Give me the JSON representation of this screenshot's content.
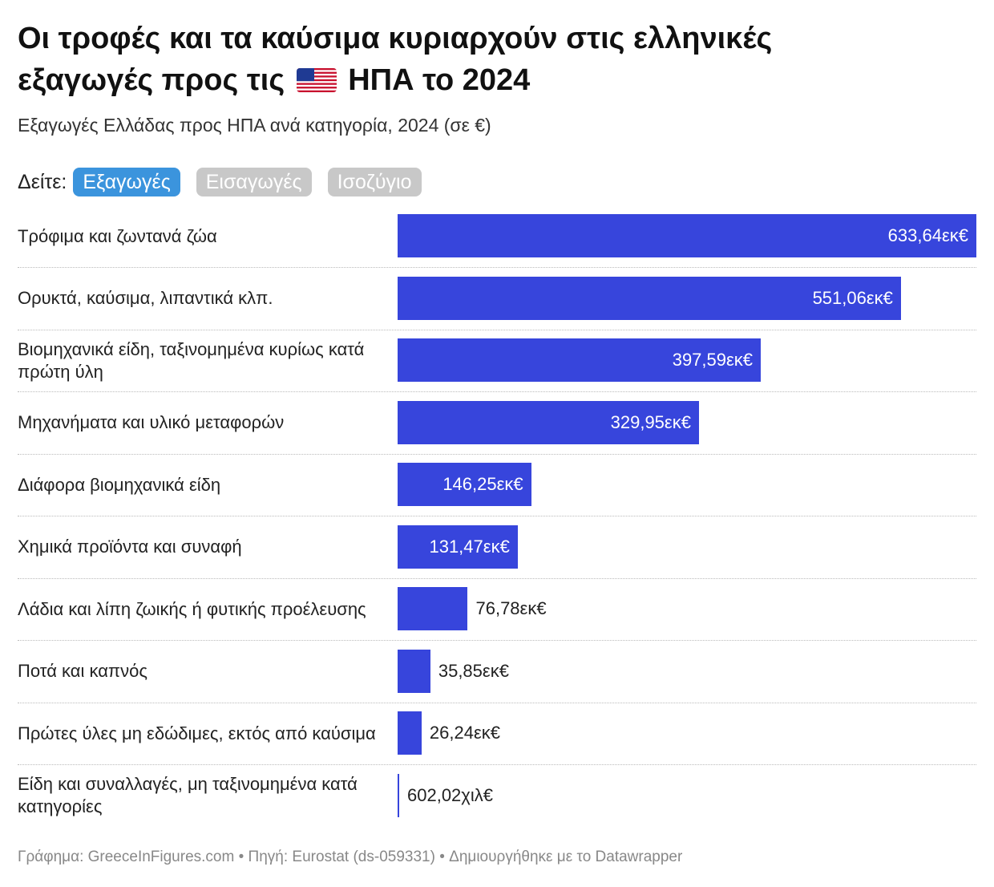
{
  "title_line1": "Οι τροφές και τα καύσιμα κυριαρχούν στις ελληνικές",
  "title_line2_pre": "εξαγωγές προς τις",
  "title_line2_post": "ΗΠΑ το 2024",
  "subtitle": "Εξαγωγές Ελλάδας προς ΗΠΑ ανά κατηγορία, 2024 (σε €)",
  "tabs": {
    "label": "Δείτε:",
    "items": [
      "Εξαγωγές",
      "Εισαγωγές",
      "Ισοζύγιο"
    ],
    "active": 0
  },
  "colors": {
    "bar": "#3745dc",
    "active_tab": "#3b94dd",
    "inactive_tab": "#c8c8c8"
  },
  "footer": "Γράφημα: GreeceInFigures.com • Πηγή: Eurostat (ds-059331) • Δημιουργήθηκε με το Datawrapper",
  "chart_data": {
    "type": "bar",
    "orientation": "horizontal",
    "unit": "€",
    "categories": [
      "Τρόφιμα και ζωντανά ζώα",
      "Ορυκτά, καύσιμα, λιπαντικά κλπ.",
      "Βιομηχανικά είδη, ταξινομημένα κυρίως κατά πρώτη ύλη",
      "Μηχανήματα και υλικό μεταφορών",
      "Διάφορα βιομηχανικά είδη",
      "Χημικά προϊόντα και συναφή",
      "Λάδια και λίπη ζωικής ή φυτικής προέλευσης",
      "Ποτά και καπνός",
      "Πρώτες ύλες μη εδώδιμες, εκτός από καύσιμα",
      "Είδη και συναλλαγές, μη ταξινομημένα κατά κατηγορίες"
    ],
    "values": [
      633640000,
      551060000,
      397590000,
      329950000,
      146250000,
      131470000,
      76780000,
      35850000,
      26240000,
      602020
    ],
    "value_labels": [
      "633,64εκ€",
      "551,06εκ€",
      "397,59εκ€",
      "329,95εκ€",
      "146,25εκ€",
      "131,47εκ€",
      "76,78εκ€",
      "35,85εκ€",
      "26,24εκ€",
      "602,02χιλ€"
    ],
    "xlim": [
      0,
      633640000
    ]
  }
}
